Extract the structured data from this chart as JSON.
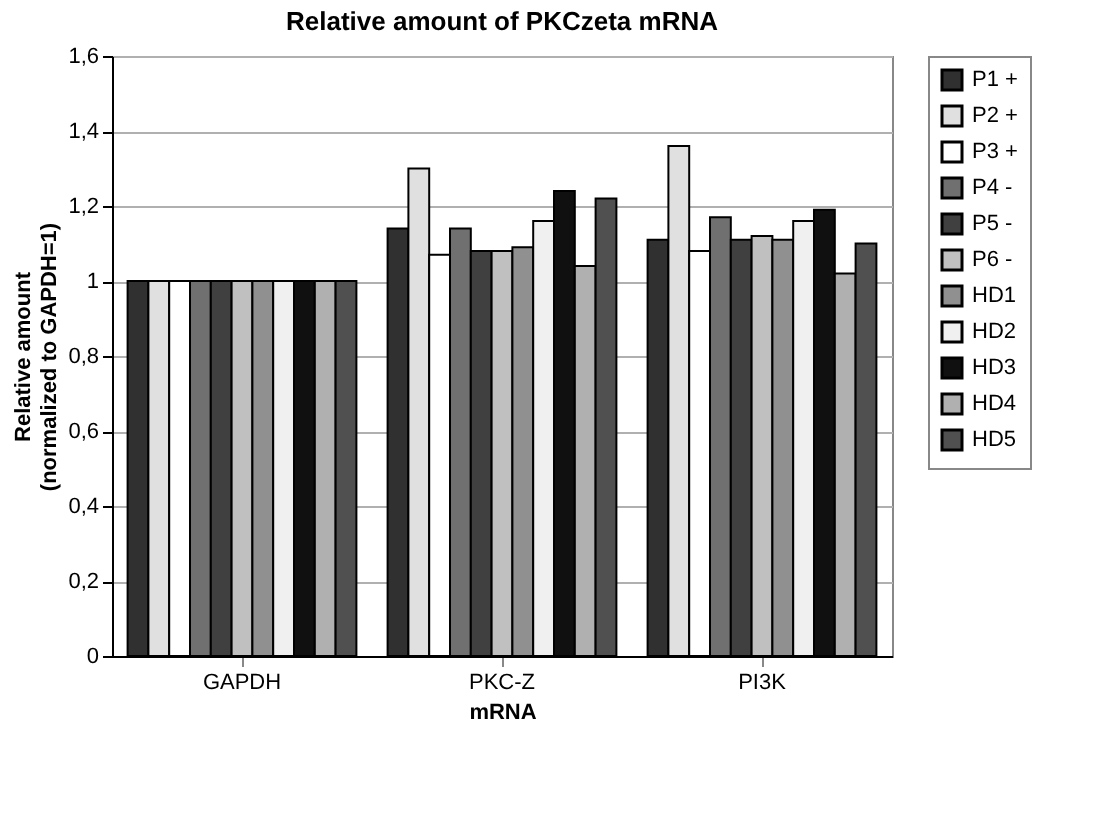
{
  "chart_data": {
    "type": "bar",
    "title": "Relative amount of PKCzeta mRNA",
    "xlabel": "mRNA",
    "ylabel": "Relative amount\n(normalized to GAPDH=1)",
    "categories": [
      "GAPDH",
      "PKC-Z",
      "PI3K"
    ],
    "series": [
      {
        "name": "P1 +",
        "color": "#303030",
        "values": [
          1,
          1.14,
          1.11
        ]
      },
      {
        "name": "P2 +",
        "color": "#e0e0e0",
        "values": [
          1,
          1.3,
          1.36
        ]
      },
      {
        "name": "P3 +",
        "color": "#ffffff",
        "values": [
          1,
          1.07,
          1.08
        ]
      },
      {
        "name": "P4 -",
        "color": "#707070",
        "values": [
          1,
          1.14,
          1.17
        ]
      },
      {
        "name": "P5 -",
        "color": "#404040",
        "values": [
          1,
          1.08,
          1.11
        ]
      },
      {
        "name": "P6 -",
        "color": "#c0c0c0",
        "values": [
          1,
          1.08,
          1.12
        ]
      },
      {
        "name": "HD1",
        "color": "#909090",
        "values": [
          1,
          1.09,
          1.11
        ]
      },
      {
        "name": "HD2",
        "color": "#f0f0f0",
        "values": [
          1,
          1.16,
          1.16
        ]
      },
      {
        "name": "HD3",
        "color": "#101010",
        "values": [
          1,
          1.24,
          1.19
        ]
      },
      {
        "name": "HD4",
        "color": "#b0b0b0",
        "values": [
          1,
          1.04,
          1.02
        ]
      },
      {
        "name": "HD5",
        "color": "#505050",
        "values": [
          1,
          1.22,
          1.1
        ]
      }
    ],
    "ylim": [
      0,
      1.6
    ],
    "yticks": [
      0,
      {
        "value": 0.2,
        "label": "0,2"
      },
      {
        "value": 0.4,
        "label": "0,4"
      },
      {
        "value": 0.6,
        "label": "0,6"
      },
      {
        "value": 0.8,
        "label": "0,8"
      },
      1,
      {
        "value": 1.2,
        "label": "1,2"
      },
      {
        "value": 1.4,
        "label": "1,4"
      },
      {
        "value": 1.6,
        "label": "1,6"
      }
    ],
    "grid": "y",
    "legend": "right"
  }
}
